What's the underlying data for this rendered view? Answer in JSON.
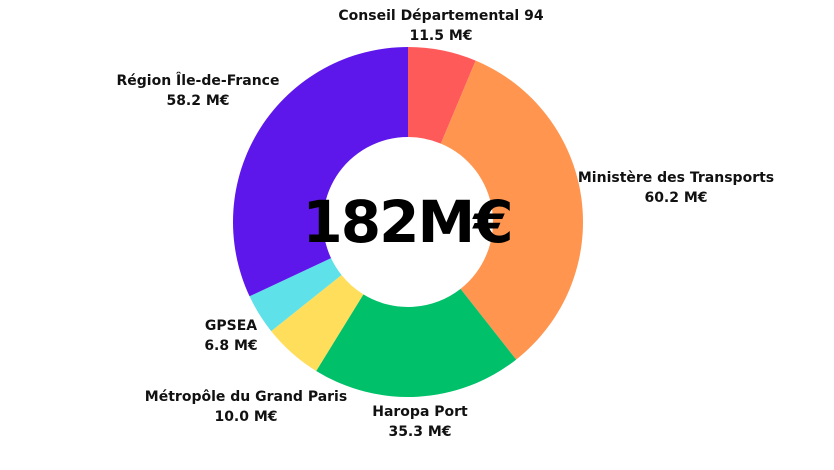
{
  "chart_data": {
    "type": "pie",
    "style": "donut",
    "center_label": "182M€",
    "unit": "M€",
    "slices": [
      {
        "label": "Conseil Départemental 94",
        "value": 11.5,
        "value_label": "11.5 M€",
        "color": "#FF5A5A"
      },
      {
        "label": "Ministère des Transports",
        "value": 60.2,
        "value_label": "60.2 M€",
        "color": "#FF954F"
      },
      {
        "label": "Haropa Port",
        "value": 35.3,
        "value_label": "35.3 M€",
        "color": "#00C16A"
      },
      {
        "label": "Métropôle du Grand Paris",
        "value": 10.0,
        "value_label": "10.0 M€",
        "color": "#FFDE5C"
      },
      {
        "label": "GPSEA",
        "value": 6.8,
        "value_label": "6.8 M€",
        "color": "#5EE1E8"
      },
      {
        "label": "Région Île-de-France",
        "value": 58.2,
        "value_label": "58.2 M€",
        "color": "#5E17EB"
      }
    ]
  }
}
